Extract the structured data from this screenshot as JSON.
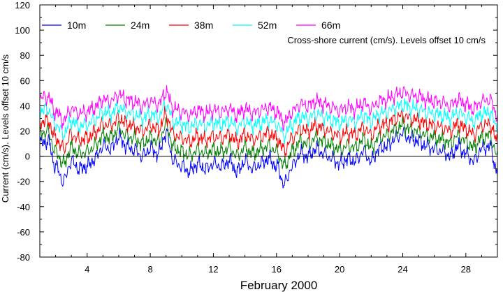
{
  "chart_data": {
    "type": "line",
    "title": "",
    "annotation": "Cross-shore current (cm/s). Levels offset 10 cm/s",
    "xlabel": "February 2000",
    "ylabel": "Current (cm/s). Levels offset 10 cm/s",
    "xlim": [
      1,
      30
    ],
    "ylim": [
      -80,
      120
    ],
    "x_ticks": [
      4,
      8,
      12,
      16,
      20,
      24,
      28
    ],
    "y_ticks": [
      -80,
      -60,
      -40,
      -20,
      0,
      20,
      40,
      60,
      80,
      100,
      120
    ],
    "zero_line": 0,
    "legend_position": "top-left",
    "series": [
      {
        "name": "10m",
        "color": "#0000ff",
        "offset": 0
      },
      {
        "name": "24m",
        "color": "#008000",
        "offset": 10
      },
      {
        "name": "38m",
        "color": "#ff0000",
        "offset": 20
      },
      {
        "name": "52m",
        "color": "#00ffff",
        "offset": 30
      },
      {
        "name": "66m",
        "color": "#ff00ff",
        "offset": 40
      }
    ],
    "keypoints": {
      "day": [
        1.0,
        1.5,
        2.0,
        2.5,
        3.0,
        3.5,
        4.0,
        4.5,
        5.0,
        5.5,
        6.0,
        6.5,
        7.0,
        7.5,
        8.0,
        8.5,
        9.0,
        9.5,
        10.0,
        10.5,
        11.0,
        11.5,
        12.0,
        12.5,
        13.0,
        13.5,
        14.0,
        14.5,
        15.0,
        15.5,
        16.0,
        16.5,
        17.0,
        17.5,
        18.0,
        18.5,
        19.0,
        19.5,
        20.0,
        20.5,
        21.0,
        21.5,
        22.0,
        22.5,
        23.0,
        23.5,
        24.0,
        24.5,
        25.0,
        25.5,
        26.0,
        26.5,
        27.0,
        27.5,
        28.0,
        28.5,
        29.0,
        29.5,
        30.0
      ],
      "anomaly": [
        10,
        12,
        -8,
        -20,
        -4,
        -10,
        -8,
        -2,
        8,
        6,
        15,
        8,
        5,
        0,
        6,
        2,
        18,
        -4,
        -8,
        -12,
        -6,
        -10,
        -6,
        -8,
        -4,
        -12,
        -4,
        -10,
        -6,
        -2,
        -8,
        -22,
        -8,
        2,
        0,
        6,
        2,
        -2,
        -6,
        -2,
        -4,
        4,
        -4,
        6,
        8,
        14,
        18,
        14,
        12,
        8,
        6,
        4,
        0,
        8,
        2,
        -4,
        6,
        8,
        -12
      ]
    },
    "series_fluctuation": [
      1.0,
      0.8,
      0.7,
      0.6,
      0.6
    ]
  }
}
